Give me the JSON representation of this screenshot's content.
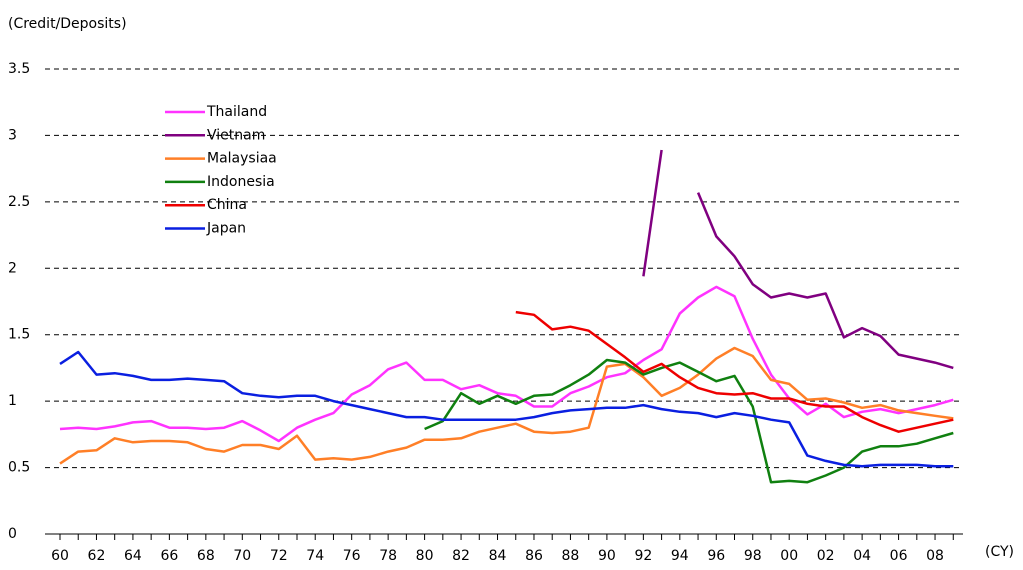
{
  "chart_data": {
    "type": "line",
    "y_label": "(Credit/Deposits)",
    "x_label": "(CY)",
    "categories": [
      "60",
      null,
      "62",
      null,
      "64",
      null,
      "66",
      null,
      "68",
      null,
      "70",
      null,
      "72",
      null,
      "74",
      null,
      "76",
      null,
      "78",
      null,
      "80",
      null,
      "82",
      null,
      "84",
      null,
      "86",
      null,
      "88",
      null,
      "90",
      null,
      "92",
      null,
      "94",
      null,
      "96",
      null,
      "98",
      null,
      "00",
      null,
      "02",
      null,
      "04",
      null,
      "06",
      null,
      "08",
      null
    ],
    "ylim": [
      0,
      3.5
    ],
    "yticks": [
      0,
      0.5,
      1,
      1.5,
      2,
      2.5,
      3,
      3.5
    ],
    "grid": true,
    "legend": "upper left",
    "series": [
      {
        "name": "Thailand",
        "color": "#ff33ff",
        "values": [
          0.79,
          0.8,
          0.79,
          0.81,
          0.84,
          0.85,
          0.8,
          0.8,
          0.79,
          0.8,
          0.85,
          0.78,
          0.7,
          0.8,
          0.86,
          0.91,
          1.05,
          1.12,
          1.24,
          1.29,
          1.16,
          1.16,
          1.09,
          1.12,
          1.06,
          1.04,
          0.96,
          0.96,
          1.06,
          1.11,
          1.18,
          1.21,
          1.31,
          1.39,
          1.66,
          1.78,
          1.86,
          1.79,
          1.47,
          1.2,
          1.02,
          0.9,
          0.98,
          0.88,
          0.92,
          0.94,
          0.91,
          0.94,
          0.97,
          1.01
        ]
      },
      {
        "name": "Vietnam",
        "color": "#800080",
        "values": [
          null,
          null,
          null,
          null,
          null,
          null,
          null,
          null,
          null,
          null,
          null,
          null,
          null,
          null,
          null,
          null,
          null,
          null,
          null,
          null,
          null,
          null,
          null,
          null,
          null,
          null,
          null,
          null,
          null,
          null,
          null,
          null,
          1.94,
          2.89,
          null,
          2.57,
          2.24,
          2.09,
          1.88,
          1.78,
          1.81,
          1.78,
          1.81,
          1.48,
          1.55,
          1.49,
          1.35,
          1.32,
          1.29,
          1.25
        ]
      },
      {
        "name": "Malaysiaa",
        "color": "#ff7f27",
        "values": [
          0.53,
          0.62,
          0.63,
          0.72,
          0.69,
          0.7,
          0.7,
          0.69,
          0.64,
          0.62,
          0.67,
          0.67,
          0.64,
          0.74,
          0.56,
          0.57,
          0.56,
          0.58,
          0.62,
          0.65,
          0.71,
          0.71,
          0.72,
          0.77,
          0.8,
          0.83,
          0.77,
          0.76,
          0.77,
          0.8,
          1.26,
          1.28,
          1.18,
          1.04,
          1.1,
          1.2,
          1.32,
          1.4,
          1.34,
          1.16,
          1.13,
          1.01,
          1.02,
          0.99,
          0.95,
          0.97,
          0.93,
          0.91,
          0.89,
          0.87
        ]
      },
      {
        "name": "Indonesia",
        "color": "#108010",
        "values": [
          null,
          null,
          null,
          null,
          null,
          null,
          null,
          null,
          null,
          null,
          null,
          null,
          null,
          null,
          null,
          null,
          null,
          null,
          null,
          null,
          0.79,
          0.85,
          1.06,
          0.98,
          1.04,
          0.98,
          1.04,
          1.05,
          1.12,
          1.2,
          1.31,
          1.29,
          1.2,
          1.25,
          1.29,
          1.22,
          1.15,
          1.19,
          0.96,
          0.39,
          0.4,
          0.39,
          0.44,
          0.5,
          0.62,
          0.66,
          0.66,
          0.68,
          0.72,
          0.76
        ]
      },
      {
        "name": "China",
        "color": "#ee0000",
        "values": [
          null,
          null,
          null,
          null,
          null,
          null,
          null,
          null,
          null,
          null,
          null,
          null,
          null,
          null,
          null,
          null,
          null,
          null,
          null,
          null,
          null,
          null,
          null,
          null,
          null,
          1.67,
          1.65,
          1.54,
          1.56,
          1.53,
          1.43,
          1.33,
          1.22,
          1.28,
          1.18,
          1.1,
          1.06,
          1.05,
          1.06,
          1.02,
          1.02,
          0.98,
          0.96,
          0.96,
          0.88,
          0.82,
          0.77,
          0.8,
          0.83,
          0.86
        ]
      },
      {
        "name": "Japan",
        "color": "#0a1fe0",
        "values": [
          1.28,
          1.37,
          1.2,
          1.21,
          1.19,
          1.16,
          1.16,
          1.17,
          1.16,
          1.15,
          1.06,
          1.04,
          1.03,
          1.04,
          1.04,
          1.0,
          0.97,
          0.94,
          0.91,
          0.88,
          0.88,
          0.86,
          0.86,
          0.86,
          0.86,
          0.86,
          0.88,
          0.91,
          0.93,
          0.94,
          0.95,
          0.95,
          0.97,
          0.94,
          0.92,
          0.91,
          0.88,
          0.91,
          0.89,
          0.86,
          0.84,
          0.59,
          0.55,
          0.52,
          0.51,
          0.52,
          0.52,
          0.52,
          0.51,
          0.51
        ]
      }
    ]
  }
}
